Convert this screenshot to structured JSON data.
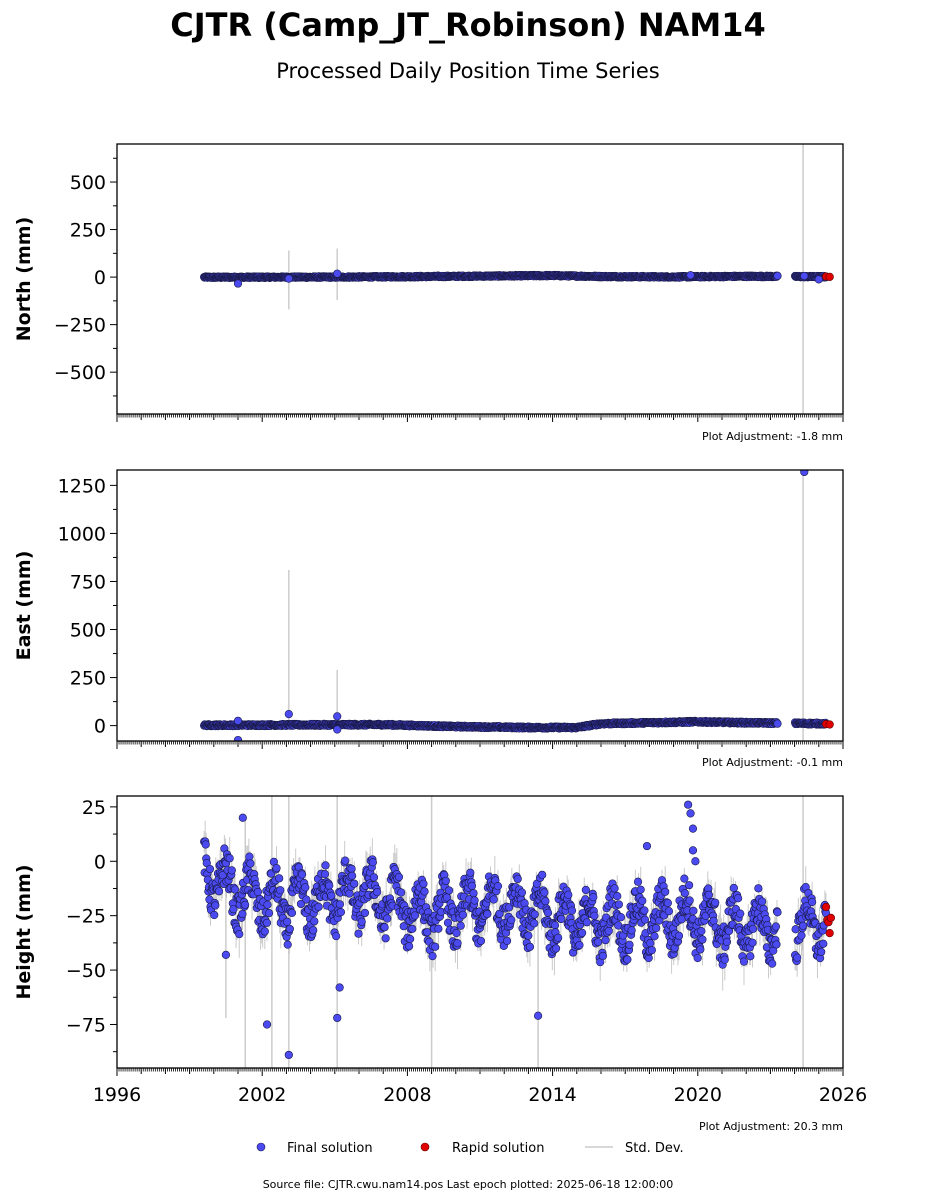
{
  "title": "CJTR (Camp_JT_Robinson) NAM14",
  "subtitle": "Processed Daily Position Time Series",
  "colors": {
    "final": "#4a4af0",
    "final_edge": "#1a1a4a",
    "rapid": "#e00000",
    "stddev": "#cccccc",
    "axis": "#000000"
  },
  "chart_data": [
    {
      "type": "scatter",
      "ylabel": "North (mm)",
      "ylim": [
        -720,
        700
      ],
      "yticks": [
        -500,
        -250,
        0,
        250,
        500
      ],
      "xlim": [
        1996,
        2026
      ],
      "adjustment": "Plot Adjustment: -1.8 mm",
      "final_series": {
        "name": "Final solution",
        "x_range": [
          1999.6,
          2025.3
        ],
        "baseline": [
          [
            1999.6,
            -1
          ],
          [
            2005,
            0
          ],
          [
            2008,
            2
          ],
          [
            2012,
            6
          ],
          [
            2014,
            8
          ],
          [
            2016,
            3
          ],
          [
            2019,
            1
          ],
          [
            2022,
            4
          ],
          [
            2025.3,
            2
          ]
        ],
        "scatter_amp": 4,
        "outliers": [
          [
            2001.0,
            -34
          ],
          [
            2005.1,
            18
          ],
          [
            2003.1,
            -8
          ],
          [
            2019.7,
            10
          ],
          [
            2024.4,
            6
          ],
          [
            2025.0,
            -12
          ]
        ]
      },
      "rapid_series": {
        "name": "Rapid solution",
        "x": [
          2025.3,
          2025.45
        ],
        "y": [
          3,
          1
        ]
      },
      "stddev_spikes": [
        [
          2003.1,
          -170,
          140
        ],
        [
          2005.1,
          -120,
          150
        ],
        [
          2024.35,
          -720,
          700
        ]
      ]
    },
    {
      "type": "scatter",
      "ylabel": "East (mm)",
      "ylim": [
        -80,
        1330
      ],
      "yticks": [
        0,
        250,
        500,
        750,
        1000,
        1250
      ],
      "xlim": [
        1996,
        2026
      ],
      "adjustment": "Plot Adjustment: -0.1 mm",
      "final_series": {
        "name": "Final solution",
        "x_range": [
          1999.6,
          2025.3
        ],
        "baseline": [
          [
            1999.6,
            2
          ],
          [
            2007,
            5
          ],
          [
            2010,
            -5
          ],
          [
            2013,
            -10
          ],
          [
            2015,
            -10
          ],
          [
            2016,
            10
          ],
          [
            2020,
            20
          ],
          [
            2022,
            15
          ],
          [
            2025.3,
            10
          ]
        ],
        "scatter_amp": 5,
        "outliers": [
          [
            2001.0,
            25
          ],
          [
            2003.1,
            60
          ],
          [
            2005.1,
            48
          ],
          [
            2005.1,
            -20
          ],
          [
            2001.0,
            -75
          ],
          [
            2024.4,
            1320
          ]
        ]
      },
      "rapid_series": {
        "name": "Rapid solution",
        "x": [
          2025.3,
          2025.45
        ],
        "y": [
          8,
          6
        ]
      },
      "stddev_spikes": [
        [
          2003.1,
          -20,
          810
        ],
        [
          2005.1,
          -20,
          290
        ],
        [
          2024.35,
          -80,
          1330
        ]
      ]
    },
    {
      "type": "scatter",
      "ylabel": "Height (mm)",
      "ylim": [
        -95,
        30
      ],
      "yticks": [
        -75,
        -50,
        -25,
        0,
        25
      ],
      "xlim": [
        1996,
        2026
      ],
      "xticks": [
        1996,
        2002,
        2008,
        2014,
        2020,
        2026
      ],
      "adjustment": "Plot Adjustment: 20.3 mm",
      "final_series": {
        "name": "Final solution",
        "x_range": [
          1999.6,
          2025.3
        ],
        "mean": [
          [
            1999.6,
            -5
          ],
          [
            2001,
            -15
          ],
          [
            2003,
            -20
          ],
          [
            2006,
            -15
          ],
          [
            2009,
            -25
          ],
          [
            2012,
            -20
          ],
          [
            2015,
            -28
          ],
          [
            2018,
            -28
          ],
          [
            2019.7,
            -25
          ],
          [
            2021,
            -30
          ],
          [
            2023,
            -30
          ],
          [
            2025.3,
            -28
          ]
        ],
        "seasonal_amp": 10,
        "noise_amp": 9,
        "outliers": [
          [
            2000.5,
            -43
          ],
          [
            2001.2,
            20
          ],
          [
            2002.2,
            -75
          ],
          [
            2003.1,
            -89
          ],
          [
            2005.1,
            -72
          ],
          [
            2005.2,
            -58
          ],
          [
            2013.4,
            -71
          ],
          [
            2019.6,
            26
          ],
          [
            2019.7,
            22
          ],
          [
            2019.8,
            15
          ],
          [
            2019.8,
            5
          ],
          [
            2019.9,
            0
          ],
          [
            2017.9,
            7
          ]
        ]
      },
      "rapid_series": {
        "name": "Rapid solution",
        "x": [
          2025.3,
          2025.35,
          2025.4,
          2025.45,
          2025.5
        ],
        "y": [
          -21,
          -27,
          -28,
          -33,
          -26
        ]
      },
      "stddev_spikes": [
        [
          2000.5,
          -72,
          0
        ],
        [
          2001.3,
          -95,
          20
        ],
        [
          2002.4,
          -95,
          30
        ],
        [
          2003.1,
          -95,
          30
        ],
        [
          2005.1,
          -95,
          30
        ],
        [
          2009.0,
          -95,
          30
        ],
        [
          2013.4,
          -95,
          -10
        ],
        [
          2024.35,
          -95,
          30
        ]
      ]
    }
  ],
  "legend": {
    "final": "Final solution",
    "rapid": "Rapid solution",
    "stddev": "Std. Dev."
  },
  "footer": "Source file: CJTR.cwu.nam14.pos  Last epoch plotted: 2025-06-18 12:00:00"
}
